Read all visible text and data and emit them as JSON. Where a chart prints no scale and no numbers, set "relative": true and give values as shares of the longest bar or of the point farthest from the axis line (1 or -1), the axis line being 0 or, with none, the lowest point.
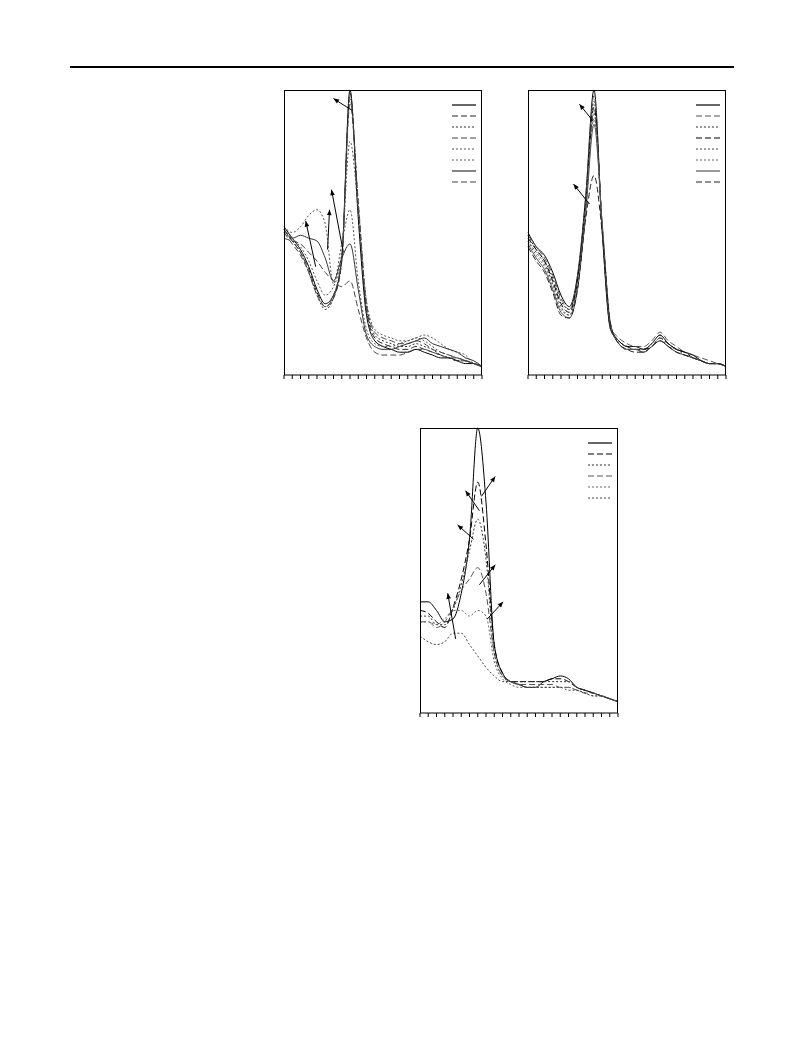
{
  "chart_data": [
    {
      "type": "line",
      "relative": true,
      "categories": [
        null,
        null,
        null,
        null,
        null,
        null,
        null,
        null,
        null,
        null,
        null,
        null,
        null,
        null,
        null,
        null,
        null,
        null,
        null,
        null,
        null,
        null,
        null,
        null,
        null
      ],
      "series": [
        {
          "color": "#000000",
          "line_style": "solid",
          "values": [
            0.52,
            0.48,
            0.44,
            0.38,
            0.3,
            0.25,
            0.28,
            0.41,
            1.0,
            0.55,
            0.21,
            0.12,
            0.1,
            0.09,
            0.08,
            0.08,
            0.09,
            0.08,
            0.07,
            0.06,
            0.06,
            0.05,
            0.04,
            0.04,
            0.03
          ]
        },
        {
          "color": "#222222",
          "line_style": "dashed",
          "values": [
            0.51,
            0.47,
            0.43,
            0.37,
            0.29,
            0.24,
            0.27,
            0.4,
            0.99,
            0.58,
            0.23,
            0.13,
            0.11,
            0.1,
            0.09,
            0.09,
            0.1,
            0.09,
            0.08,
            0.07,
            0.06,
            0.05,
            0.05,
            0.04,
            0.03
          ]
        },
        {
          "color": "#333333",
          "line_style": "dotted",
          "values": [
            0.5,
            0.47,
            0.43,
            0.36,
            0.28,
            0.23,
            0.27,
            0.4,
            0.97,
            0.6,
            0.24,
            0.14,
            0.12,
            0.11,
            0.1,
            0.1,
            0.11,
            0.1,
            0.09,
            0.07,
            0.06,
            0.05,
            0.05,
            0.04,
            0.03
          ]
        },
        {
          "color": "#444444",
          "line_style": "dashed",
          "values": [
            0.5,
            0.46,
            0.42,
            0.36,
            0.28,
            0.24,
            0.28,
            0.41,
            0.95,
            0.61,
            0.25,
            0.15,
            0.13,
            0.12,
            0.11,
            0.11,
            0.12,
            0.11,
            0.09,
            0.08,
            0.07,
            0.06,
            0.05,
            0.04,
            0.03
          ]
        },
        {
          "color": "#555555",
          "line_style": "dotted",
          "values": [
            0.51,
            0.48,
            0.45,
            0.4,
            0.33,
            0.28,
            0.31,
            0.43,
            0.82,
            0.58,
            0.26,
            0.16,
            0.14,
            0.13,
            0.12,
            0.12,
            0.13,
            0.12,
            0.1,
            0.08,
            0.07,
            0.06,
            0.05,
            0.04,
            0.03
          ]
        },
        {
          "color": "#555555",
          "line_style": "dotted",
          "values": [
            0.52,
            0.5,
            0.52,
            0.56,
            0.58,
            0.53,
            0.32,
            0.46,
            0.58,
            0.33,
            0.16,
            0.11,
            0.1,
            0.1,
            0.11,
            0.12,
            0.13,
            0.14,
            0.13,
            0.11,
            0.09,
            0.08,
            0.07,
            0.04,
            0.03
          ]
        },
        {
          "color": "#333333",
          "line_style": "solid",
          "values": [
            0.51,
            0.48,
            0.49,
            0.48,
            0.47,
            0.41,
            0.33,
            0.41,
            0.46,
            0.3,
            0.14,
            0.1,
            0.09,
            0.09,
            0.1,
            0.11,
            0.12,
            0.13,
            0.11,
            0.1,
            0.09,
            0.08,
            0.06,
            0.05,
            0.03
          ]
        },
        {
          "color": "#444444",
          "line_style": "dashed",
          "values": [
            0.48,
            0.47,
            0.46,
            0.43,
            0.4,
            0.36,
            0.33,
            0.31,
            0.33,
            0.23,
            0.13,
            0.08,
            0.07,
            0.07,
            0.07,
            0.08,
            0.09,
            0.09,
            0.08,
            0.07,
            0.06,
            0.06,
            0.05,
            0.04,
            0.03
          ]
        }
      ]
    },
    {
      "type": "line",
      "relative": true,
      "categories": [
        null,
        null,
        null,
        null,
        null,
        null,
        null,
        null,
        null,
        null,
        null,
        null,
        null,
        null,
        null,
        null,
        null,
        null,
        null,
        null,
        null,
        null,
        null,
        null,
        null
      ],
      "series": [
        {
          "color": "#000000",
          "line_style": "solid",
          "values": [
            0.5,
            0.45,
            0.42,
            0.36,
            0.28,
            0.24,
            0.35,
            0.63,
            1.0,
            0.5,
            0.16,
            0.12,
            0.1,
            0.1,
            0.09,
            0.11,
            0.14,
            0.11,
            0.09,
            0.08,
            0.07,
            0.05,
            0.04,
            0.04,
            0.03
          ]
        },
        {
          "color": "#555555",
          "line_style": "dashed",
          "values": [
            0.49,
            0.45,
            0.41,
            0.35,
            0.27,
            0.23,
            0.34,
            0.62,
            0.98,
            0.51,
            0.17,
            0.13,
            0.11,
            0.1,
            0.1,
            0.12,
            0.15,
            0.12,
            0.1,
            0.08,
            0.07,
            0.06,
            0.05,
            0.04,
            0.03
          ]
        },
        {
          "color": "#333333",
          "line_style": "dotted",
          "values": [
            0.49,
            0.44,
            0.4,
            0.34,
            0.26,
            0.23,
            0.34,
            0.61,
            0.96,
            0.51,
            0.16,
            0.12,
            0.1,
            0.1,
            0.09,
            0.11,
            0.14,
            0.11,
            0.09,
            0.08,
            0.07,
            0.05,
            0.04,
            0.04,
            0.03
          ]
        },
        {
          "color": "#000000",
          "line_style": "dashed",
          "values": [
            0.48,
            0.44,
            0.4,
            0.33,
            0.25,
            0.22,
            0.33,
            0.6,
            0.94,
            0.52,
            0.17,
            0.12,
            0.1,
            0.09,
            0.09,
            0.1,
            0.13,
            0.11,
            0.09,
            0.08,
            0.06,
            0.05,
            0.04,
            0.04,
            0.03
          ]
        },
        {
          "color": "#444444",
          "line_style": "dotted",
          "values": [
            0.47,
            0.43,
            0.39,
            0.32,
            0.24,
            0.21,
            0.32,
            0.59,
            0.92,
            0.52,
            0.17,
            0.11,
            0.09,
            0.09,
            0.08,
            0.1,
            0.13,
            0.1,
            0.09,
            0.07,
            0.06,
            0.05,
            0.04,
            0.04,
            0.03
          ]
        },
        {
          "color": "#666666",
          "line_style": "dotted",
          "values": [
            0.47,
            0.42,
            0.38,
            0.31,
            0.23,
            0.21,
            0.31,
            0.58,
            0.9,
            0.53,
            0.18,
            0.11,
            0.09,
            0.09,
            0.08,
            0.1,
            0.12,
            0.1,
            0.08,
            0.07,
            0.06,
            0.05,
            0.04,
            0.04,
            0.03
          ]
        },
        {
          "color": "#555555",
          "line_style": "solid",
          "values": [
            0.46,
            0.41,
            0.37,
            0.3,
            0.22,
            0.2,
            0.3,
            0.57,
            0.88,
            0.53,
            0.18,
            0.11,
            0.09,
            0.09,
            0.08,
            0.1,
            0.12,
            0.1,
            0.08,
            0.07,
            0.06,
            0.05,
            0.04,
            0.04,
            0.03
          ]
        },
        {
          "color": "#222222",
          "line_style": "dashed",
          "values": [
            0.45,
            0.4,
            0.36,
            0.29,
            0.21,
            0.2,
            0.3,
            0.55,
            0.7,
            0.5,
            0.18,
            0.11,
            0.09,
            0.08,
            0.08,
            0.1,
            0.12,
            0.1,
            0.08,
            0.07,
            0.06,
            0.05,
            0.04,
            0.04,
            0.03
          ]
        }
      ]
    },
    {
      "type": "line",
      "relative": true,
      "categories": [
        null,
        null,
        null,
        null,
        null,
        null,
        null,
        null,
        null,
        null,
        null,
        null,
        null,
        null,
        null,
        null,
        null,
        null,
        null,
        null,
        null,
        null,
        null,
        null,
        null
      ],
      "series": [
        {
          "color": "#000000",
          "line_style": "solid",
          "values": [
            0.39,
            0.39,
            0.36,
            0.32,
            0.33,
            0.42,
            0.61,
            1.0,
            0.74,
            0.24,
            0.14,
            0.11,
            0.1,
            0.09,
            0.09,
            0.11,
            0.12,
            0.13,
            0.12,
            0.09,
            0.08,
            0.07,
            0.06,
            0.05,
            0.04
          ]
        },
        {
          "color": "#000000",
          "line_style": "dashed",
          "values": [
            0.36,
            0.35,
            0.32,
            0.3,
            0.37,
            0.47,
            0.61,
            0.81,
            0.59,
            0.24,
            0.14,
            0.11,
            0.11,
            0.11,
            0.11,
            0.11,
            0.12,
            0.12,
            0.11,
            0.09,
            0.08,
            0.07,
            0.06,
            0.05,
            0.04
          ]
        },
        {
          "color": "#333333",
          "line_style": "dotted",
          "values": [
            0.34,
            0.34,
            0.31,
            0.31,
            0.36,
            0.45,
            0.57,
            0.68,
            0.54,
            0.21,
            0.13,
            0.11,
            0.11,
            0.11,
            0.11,
            0.11,
            0.11,
            0.11,
            0.11,
            0.09,
            0.08,
            0.07,
            0.06,
            0.05,
            0.04
          ]
        },
        {
          "color": "#555555",
          "line_style": "dashed",
          "values": [
            0.32,
            0.32,
            0.3,
            0.32,
            0.37,
            0.43,
            0.47,
            0.51,
            0.42,
            0.21,
            0.13,
            0.11,
            0.1,
            0.1,
            0.1,
            0.1,
            0.1,
            0.09,
            0.09,
            0.08,
            0.07,
            0.07,
            0.06,
            0.05,
            0.04
          ]
        },
        {
          "color": "#666666",
          "line_style": "dotted",
          "values": [
            0.32,
            0.32,
            0.31,
            0.33,
            0.36,
            0.36,
            0.34,
            0.36,
            0.34,
            0.18,
            0.12,
            0.1,
            0.09,
            0.09,
            0.09,
            0.09,
            0.09,
            0.09,
            0.09,
            0.08,
            0.07,
            0.06,
            0.06,
            0.05,
            0.04
          ]
        },
        {
          "color": "#444444",
          "line_style": "dotted",
          "values": [
            0.27,
            0.25,
            0.24,
            0.25,
            0.28,
            0.28,
            0.24,
            0.2,
            0.16,
            0.13,
            0.11,
            0.11,
            0.1,
            0.09,
            0.09,
            0.09,
            0.09,
            0.09,
            0.08,
            0.08,
            0.07,
            0.06,
            0.06,
            0.05,
            0.04
          ]
        }
      ]
    }
  ]
}
